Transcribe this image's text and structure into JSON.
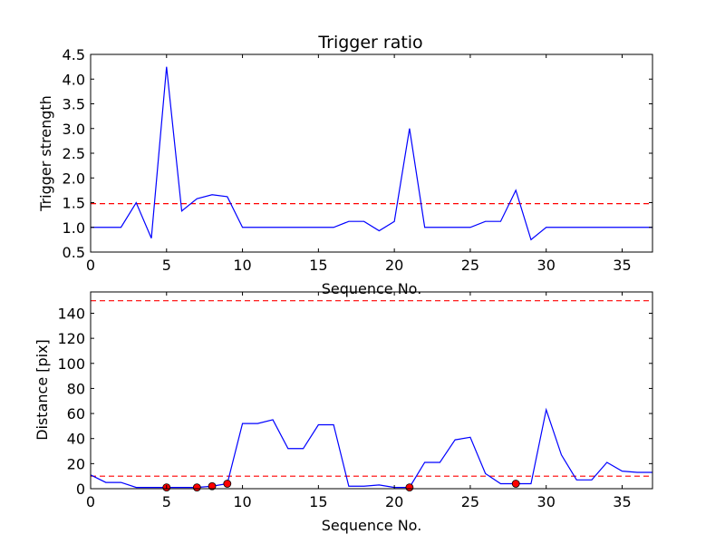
{
  "chart_data": [
    {
      "type": "line",
      "title": "Trigger ratio",
      "xlabel": "Sequence No.",
      "ylabel": "Trigger strength",
      "xlim": [
        0,
        37
      ],
      "ylim": [
        0.5,
        4.5
      ],
      "xticks": [
        0,
        5,
        10,
        15,
        20,
        25,
        30,
        35
      ],
      "xtick_labels": [
        "0",
        "5",
        "10",
        "15",
        "20",
        "25",
        "30",
        "35"
      ],
      "yticks": [
        0.5,
        1.0,
        1.5,
        2.0,
        2.5,
        3.0,
        3.5,
        4.0,
        4.5
      ],
      "ytick_labels": [
        "0.5",
        "1.0",
        "1.5",
        "2.0",
        "2.5",
        "3.0",
        "3.5",
        "4.0",
        "4.5"
      ],
      "grid": false,
      "colors": {
        "line": "#0000ff",
        "threshold": "#ff0000"
      },
      "series": [
        {
          "x": [
            0,
            1,
            2,
            3,
            4,
            5,
            6,
            7,
            8,
            9,
            10,
            11,
            12,
            13,
            14,
            15,
            16,
            17,
            18,
            19,
            20,
            21,
            22,
            23,
            24,
            25,
            26,
            27,
            28,
            29,
            30,
            31,
            32,
            33,
            34,
            35,
            36,
            37
          ],
          "values": [
            1.0,
            1.0,
            1.0,
            1.5,
            0.78,
            4.25,
            1.33,
            1.58,
            1.66,
            1.62,
            1.0,
            1.0,
            1.0,
            1.0,
            1.0,
            1.0,
            1.0,
            1.12,
            1.12,
            0.93,
            1.12,
            3.0,
            1.0,
            1.0,
            1.0,
            1.0,
            1.12,
            1.12,
            1.75,
            0.75,
            1.0,
            1.0,
            1.0,
            1.0,
            1.0,
            1.0,
            1.0,
            1.0
          ]
        }
      ],
      "hlines": [
        1.48
      ]
    },
    {
      "type": "line",
      "title": "",
      "xlabel": "Sequence No.",
      "ylabel": "Distance [pix]",
      "xlim": [
        0,
        37
      ],
      "ylim": [
        0,
        157
      ],
      "xticks": [
        0,
        5,
        10,
        15,
        20,
        25,
        30,
        35
      ],
      "xtick_labels": [
        "0",
        "5",
        "10",
        "15",
        "20",
        "25",
        "30",
        "35"
      ],
      "yticks": [
        0,
        20,
        40,
        60,
        80,
        100,
        120,
        140
      ],
      "ytick_labels": [
        "0",
        "20",
        "40",
        "60",
        "80",
        "100",
        "120",
        "140"
      ],
      "grid": false,
      "colors": {
        "line": "#0000ff",
        "threshold": "#ff0000",
        "marker": "#ff0000"
      },
      "series": [
        {
          "x": [
            0,
            1,
            2,
            3,
            4,
            5,
            6,
            7,
            8,
            9,
            10,
            11,
            12,
            13,
            14,
            15,
            16,
            17,
            18,
            19,
            20,
            21,
            22,
            23,
            24,
            25,
            26,
            27,
            28,
            29,
            30,
            31,
            32,
            33,
            34,
            35,
            36,
            37
          ],
          "values": [
            11,
            5,
            5,
            1,
            1,
            1,
            1,
            1,
            2,
            4,
            52,
            52,
            55,
            32,
            32,
            51,
            51,
            2,
            2,
            3,
            1,
            1,
            21,
            21,
            39,
            41,
            12,
            4,
            4,
            4,
            63,
            27,
            7,
            7,
            21,
            14,
            13,
            13
          ]
        }
      ],
      "markers": {
        "x": [
          5,
          7,
          8,
          9,
          21,
          28
        ],
        "values": [
          1,
          1,
          2,
          4,
          1,
          4
        ]
      },
      "hlines": [
        10,
        150
      ]
    }
  ]
}
